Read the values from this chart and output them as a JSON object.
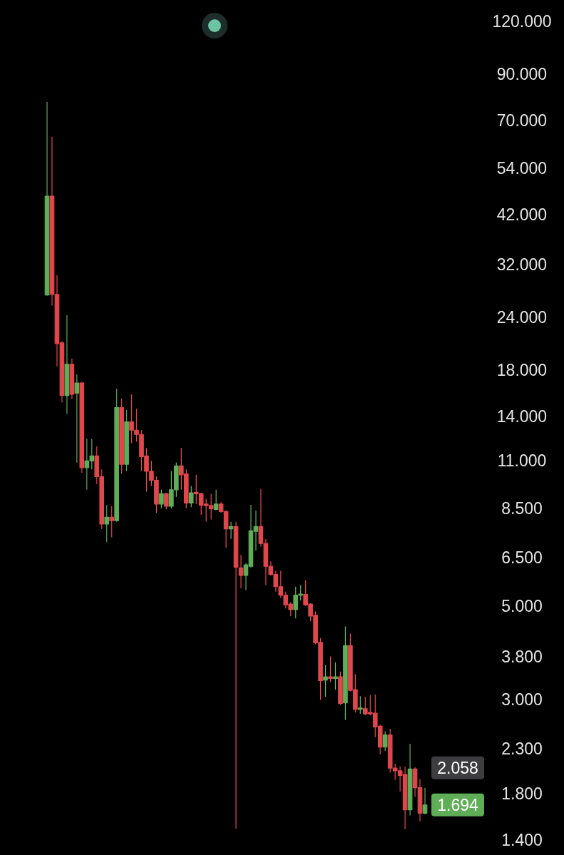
{
  "chart_data": {
    "type": "candlestick",
    "categories": [
      null,
      null,
      null,
      null,
      null,
      null,
      null,
      null,
      null,
      null,
      null,
      null,
      null,
      null,
      null,
      null,
      null,
      null,
      null,
      null,
      null,
      null,
      null,
      null,
      null,
      null,
      null,
      null,
      null,
      null,
      null,
      null,
      null,
      null,
      null,
      null,
      null,
      null,
      null,
      null,
      null,
      null,
      null,
      null,
      null,
      null,
      null,
      null,
      null,
      null,
      null,
      null,
      null,
      null,
      null,
      null,
      null,
      null,
      null,
      null,
      null,
      null,
      null,
      null,
      null,
      null,
      null,
      null,
      null,
      null,
      null,
      null,
      null,
      null,
      null,
      null,
      null
    ],
    "ohlc": [
      [
        27.1,
        77.4,
        27.0,
        46.4
      ],
      [
        46.4,
        64.1,
        25.6,
        27.2
      ],
      [
        27.2,
        30.2,
        18.4,
        20.8
      ],
      [
        20.9,
        21.1,
        15.1,
        15.7
      ],
      [
        15.7,
        24.3,
        14.2,
        18.6
      ],
      [
        18.6,
        19.2,
        15.4,
        15.8
      ],
      [
        15.9,
        17.6,
        10.9,
        16.8
      ],
      [
        16.8,
        16.9,
        10.3,
        10.6
      ],
      [
        10.6,
        12.4,
        9.4,
        11.0
      ],
      [
        11.0,
        12.4,
        10.5,
        11.3
      ],
      [
        11.3,
        11.9,
        9.7,
        10.1
      ],
      [
        10.1,
        10.5,
        7.6,
        7.8
      ],
      [
        7.8,
        8.65,
        7.07,
        8.1
      ],
      [
        8.1,
        8.6,
        7.26,
        7.95
      ],
      [
        7.95,
        16.3,
        7.9,
        14.7
      ],
      [
        14.7,
        15.45,
        10.25,
        10.8
      ],
      [
        10.8,
        14.5,
        10.4,
        13.6
      ],
      [
        13.6,
        15.8,
        12.1,
        13.0
      ],
      [
        13.0,
        14.6,
        12.2,
        12.7
      ],
      [
        12.7,
        13.0,
        10.4,
        11.25
      ],
      [
        11.3,
        11.8,
        9.3,
        10.4
      ],
      [
        10.4,
        11.0,
        9.6,
        9.9
      ],
      [
        9.9,
        10.1,
        8.28,
        8.7
      ],
      [
        8.7,
        9.4,
        8.5,
        9.2
      ],
      [
        9.2,
        9.25,
        8.45,
        8.6
      ],
      [
        8.6,
        10.4,
        8.5,
        9.4
      ],
      [
        9.4,
        10.9,
        9.05,
        10.7
      ],
      [
        10.7,
        11.8,
        9.4,
        10.2
      ],
      [
        10.25,
        10.5,
        8.5,
        8.75
      ],
      [
        8.75,
        9.6,
        8.55,
        9.25
      ],
      [
        9.27,
        10.2,
        8.7,
        9.2
      ],
      [
        9.2,
        9.25,
        8.2,
        8.65
      ],
      [
        8.7,
        8.95,
        7.9,
        8.63
      ],
      [
        8.63,
        9.2,
        8.0,
        8.48
      ],
      [
        8.45,
        9.4,
        8.4,
        8.7
      ],
      [
        8.7,
        8.8,
        8.3,
        8.35
      ],
      [
        8.35,
        8.4,
        6.86,
        7.6
      ],
      [
        7.6,
        7.9,
        7.2,
        7.7
      ],
      [
        7.7,
        7.9,
        1.49,
        6.17
      ],
      [
        6.15,
        6.6,
        5.5,
        5.9
      ],
      [
        5.9,
        6.3,
        5.45,
        6.25
      ],
      [
        6.2,
        8.66,
        6.15,
        7.52
      ],
      [
        7.5,
        8.4,
        6.76,
        7.7
      ],
      [
        7.7,
        9.45,
        6.9,
        7.02
      ],
      [
        7.02,
        7.2,
        5.6,
        6.2
      ],
      [
        6.2,
        6.37,
        5.9,
        5.93
      ],
      [
        5.93,
        6.05,
        5.4,
        5.55
      ],
      [
        5.55,
        6.05,
        5.22,
        5.3
      ],
      [
        5.3,
        5.4,
        4.93,
        5.03
      ],
      [
        5.05,
        5.1,
        4.73,
        4.9
      ],
      [
        4.9,
        5.55,
        4.67,
        5.3
      ],
      [
        5.3,
        5.6,
        5.15,
        5.33
      ],
      [
        5.32,
        5.75,
        5.0,
        5.03
      ],
      [
        5.05,
        5.07,
        4.6,
        4.73
      ],
      [
        4.75,
        4.85,
        4.06,
        4.09
      ],
      [
        4.1,
        4.2,
        3.0,
        3.33
      ],
      [
        3.34,
        3.62,
        3.05,
        3.4
      ],
      [
        3.4,
        3.8,
        3.3,
        3.37
      ],
      [
        3.37,
        3.68,
        3.17,
        3.4
      ],
      [
        3.4,
        3.5,
        2.92,
        2.94
      ],
      [
        2.95,
        4.47,
        2.69,
        4.03
      ],
      [
        4.03,
        4.3,
        3.14,
        3.16
      ],
      [
        3.17,
        3.45,
        2.8,
        2.85
      ],
      [
        2.85,
        3.06,
        2.78,
        2.87
      ],
      [
        2.86,
        3.05,
        2.76,
        2.78
      ],
      [
        2.8,
        3.08,
        2.76,
        2.78
      ],
      [
        2.79,
        3.09,
        2.45,
        2.59
      ],
      [
        2.6,
        2.62,
        2.23,
        2.32
      ],
      [
        2.32,
        2.53,
        2.27,
        2.48
      ],
      [
        2.48,
        2.56,
        2.02,
        2.07
      ],
      [
        2.07,
        2.12,
        1.94,
        2.04
      ],
      [
        2.04,
        2.09,
        1.82,
        1.99
      ],
      [
        2.0,
        2.09,
        1.485,
        1.65
      ],
      [
        1.65,
        2.36,
        1.6,
        2.06
      ],
      [
        2.06,
        2.08,
        1.77,
        1.86
      ],
      [
        1.86,
        1.95,
        1.55,
        1.62
      ],
      [
        1.62,
        1.86,
        1.61,
        1.694
      ]
    ],
    "colors": [
      "#5fae57",
      "#e0474c",
      "#e0474c",
      "#e0474c",
      "#5fae57",
      "#e0474c",
      "#5fae57",
      "#e0474c",
      "#5fae57",
      "#5fae57",
      "#e0474c",
      "#e0474c",
      "#5fae57",
      "#e0474c",
      "#5fae57",
      "#e0474c",
      "#5fae57",
      "#e0474c",
      "#e0474c",
      "#e0474c",
      "#e0474c",
      "#e0474c",
      "#e0474c",
      "#5fae57",
      "#e0474c",
      "#5fae57",
      "#5fae57",
      "#e0474c",
      "#e0474c",
      "#5fae57",
      "#e0474c",
      "#e0474c",
      "#e0474c",
      "#e0474c",
      "#5fae57",
      "#e0474c",
      "#e0474c",
      "#5fae57",
      "#e0474c",
      "#e0474c",
      "#5fae57",
      "#5fae57",
      "#5fae57",
      "#e0474c",
      "#e0474c",
      "#e0474c",
      "#e0474c",
      "#e0474c",
      "#e0474c",
      "#e0474c",
      "#5fae57",
      "#5fae57",
      "#e0474c",
      "#e0474c",
      "#e0474c",
      "#e0474c",
      "#5fae57",
      "#e0474c",
      "#5fae57",
      "#e0474c",
      "#5fae57",
      "#e0474c",
      "#e0474c",
      "#5fae57",
      "#e0474c",
      "#e0474c",
      "#e0474c",
      "#e0474c",
      "#5fae57",
      "#e0474c",
      "#e0474c",
      "#e0474c",
      "#e0474c",
      "#5fae57",
      "#e0474c",
      "#e0474c",
      "#5fae57"
    ],
    "log": "y",
    "ylim": [
      1.4,
      120
    ],
    "yticks": [
      {
        "value": 120,
        "label": "120.000"
      },
      {
        "value": 90,
        "label": "90.000"
      },
      {
        "value": 70,
        "label": "70.000"
      },
      {
        "value": 54,
        "label": "54.000"
      },
      {
        "value": 42,
        "label": "42.000"
      },
      {
        "value": 32,
        "label": "32.000"
      },
      {
        "value": 24,
        "label": "24.000"
      },
      {
        "value": 18,
        "label": "18.000"
      },
      {
        "value": 14,
        "label": "14.000"
      },
      {
        "value": 11,
        "label": "11.000"
      },
      {
        "value": 8.5,
        "label": "8.500"
      },
      {
        "value": 6.5,
        "label": "6.500"
      },
      {
        "value": 5,
        "label": "5.000"
      },
      {
        "value": 3.8,
        "label": "3.800"
      },
      {
        "value": 3,
        "label": "3.000"
      },
      {
        "value": 2.3,
        "label": "2.300"
      },
      {
        "value": 1.8,
        "label": "1.800"
      },
      {
        "value": 1.4,
        "label": "1.400"
      }
    ],
    "tick_labels": "y",
    "annotations": [
      "2.058",
      "1.694"
    ]
  }
}
